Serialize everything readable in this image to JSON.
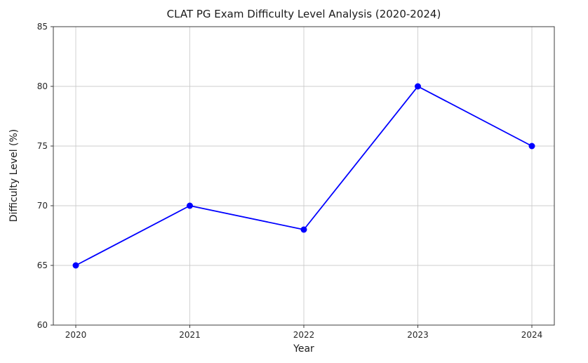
{
  "chart_data": {
    "type": "line",
    "title": "CLAT PG Exam Difficulty Level Analysis (2020-2024)",
    "xlabel": "Year",
    "ylabel": "Difficulty Level (%)",
    "x": [
      2020,
      2021,
      2022,
      2023,
      2024
    ],
    "values": [
      65,
      70,
      68,
      80,
      75
    ],
    "xticks": [
      2020,
      2021,
      2022,
      2023,
      2024
    ],
    "yticks": [
      60,
      65,
      70,
      75,
      80,
      85
    ],
    "xlim": [
      2019.8,
      2024.2
    ],
    "ylim": [
      60,
      85
    ],
    "grid": true,
    "legend": "none",
    "line_color": "#0000ff",
    "marker": "circle",
    "marker_color": "#0000ff",
    "grid_color": "#cccccc",
    "spine_color": "#3c3c3c",
    "background_color": "#ffffff"
  }
}
